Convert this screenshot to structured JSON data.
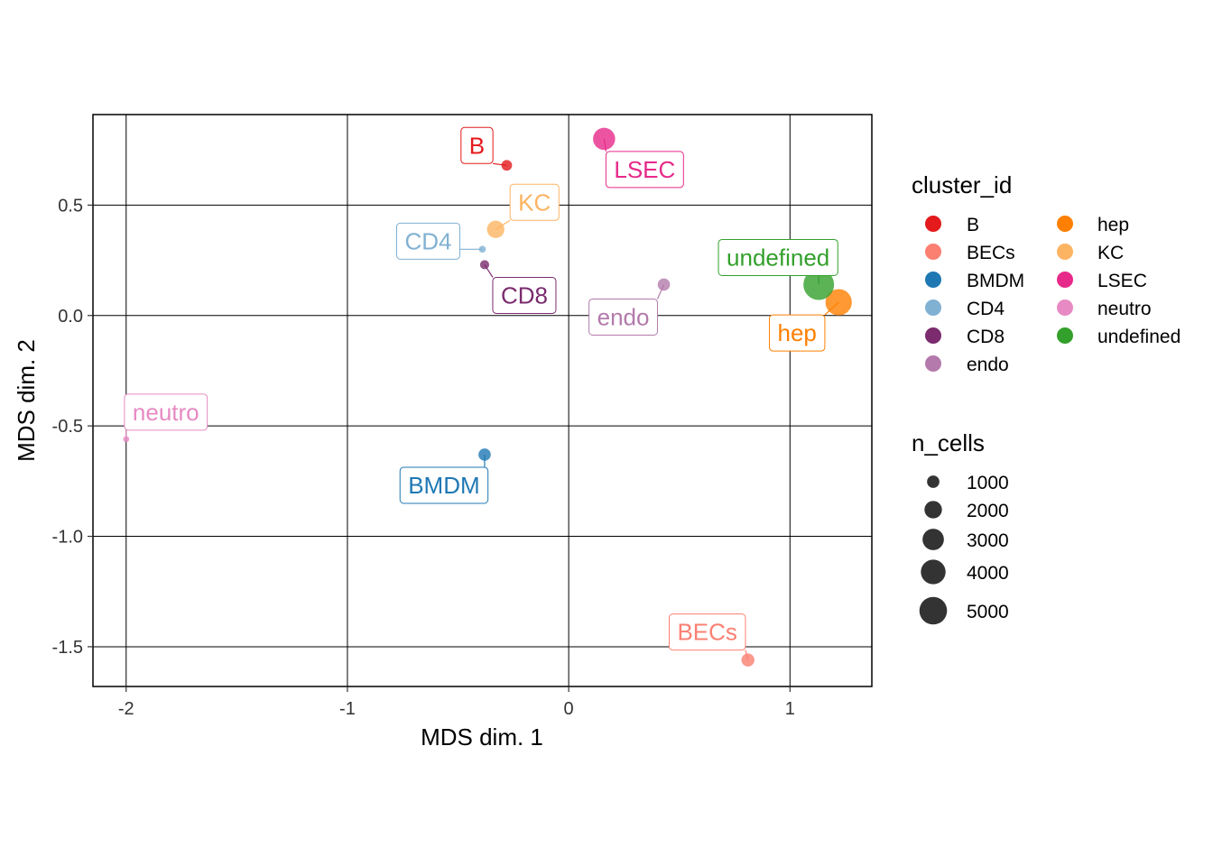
{
  "chart_data": {
    "type": "scatter",
    "xlabel": "MDS dim. 1",
    "ylabel": "MDS dim. 2",
    "xlim": [
      -2.15,
      1.37
    ],
    "ylim": [
      -1.68,
      0.91
    ],
    "x_ticks": [
      -2,
      -1,
      0,
      1
    ],
    "y_ticks": [
      -1.5,
      -1.0,
      -0.5,
      0.0,
      0.5
    ],
    "x_tick_labels": [
      "-2",
      "-1",
      "0",
      "1"
    ],
    "y_tick_labels": [
      "-1.5",
      "-1.0",
      "-0.5",
      "0.0",
      "0.5"
    ],
    "grid": true,
    "legend_position": "right",
    "points": [
      {
        "cluster_id": "B",
        "x": -0.28,
        "y": 0.68,
        "n_cells": 600,
        "color": "#E41A1C"
      },
      {
        "cluster_id": "BECs",
        "x": 0.81,
        "y": -1.56,
        "n_cells": 900,
        "color": "#FB8072"
      },
      {
        "cluster_id": "BMDM",
        "x": -0.38,
        "y": -0.63,
        "n_cells": 800,
        "color": "#1F78B4"
      },
      {
        "cluster_id": "CD4",
        "x": -0.39,
        "y": 0.3,
        "n_cells": 250,
        "color": "#80B1D3"
      },
      {
        "cluster_id": "CD8",
        "x": -0.38,
        "y": 0.23,
        "n_cells": 450,
        "color": "#7B2B6E"
      },
      {
        "cluster_id": "endo",
        "x": 0.43,
        "y": 0.14,
        "n_cells": 800,
        "color": "#B37AAB"
      },
      {
        "cluster_id": "hep",
        "x": 1.22,
        "y": 0.06,
        "n_cells": 3700,
        "color": "#FF7F00"
      },
      {
        "cluster_id": "KC",
        "x": -0.33,
        "y": 0.39,
        "n_cells": 1600,
        "color": "#FDB462"
      },
      {
        "cluster_id": "LSEC",
        "x": 0.16,
        "y": 0.8,
        "n_cells": 2600,
        "color": "#E7298A"
      },
      {
        "cluster_id": "neutro",
        "x": -2.0,
        "y": -0.56,
        "n_cells": 200,
        "color": "#E78AC3"
      },
      {
        "cluster_id": "undefined",
        "x": 1.13,
        "y": 0.14,
        "n_cells": 5000,
        "color": "#33A02C"
      }
    ],
    "legend_color": {
      "title": "cluster_id",
      "col1": [
        "B",
        "BECs",
        "BMDM",
        "CD4",
        "CD8",
        "endo"
      ],
      "col2": [
        "hep",
        "KC",
        "LSEC",
        "neutro",
        "undefined"
      ]
    },
    "legend_size": {
      "title": "n_cells",
      "breaks": [
        1000,
        2000,
        3000,
        4000,
        5000
      ],
      "labels": [
        "1000",
        "2000",
        "3000",
        "4000",
        "5000"
      ]
    }
  }
}
